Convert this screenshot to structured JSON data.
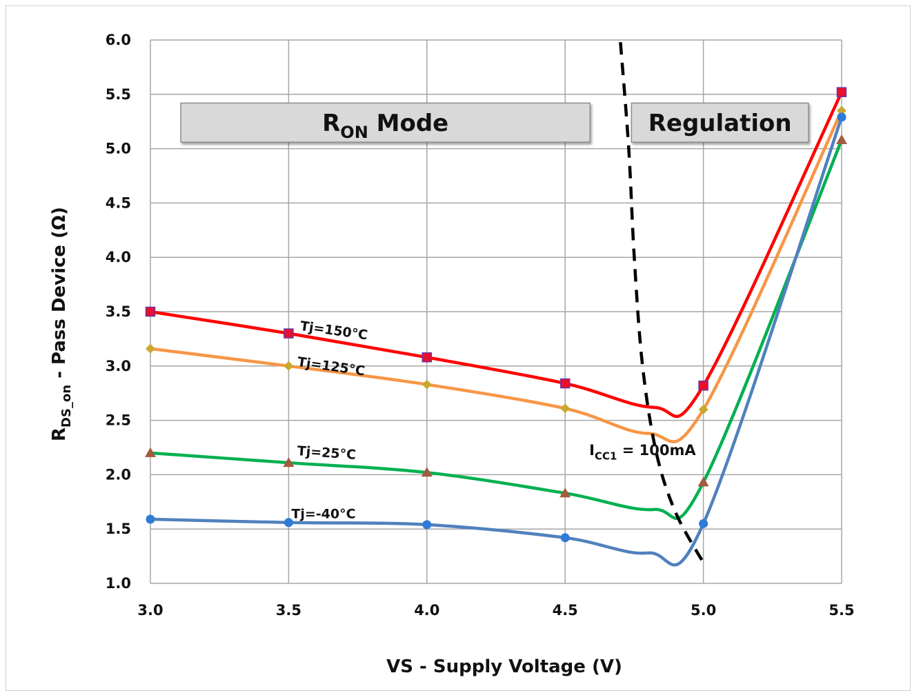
{
  "chart_data": {
    "type": "line",
    "title": "",
    "xlabel": "VS - Supply Voltage (V)",
    "ylabel": {
      "main": "R",
      "sub": "DS_on",
      "rest": " - Pass Device (Ω)"
    },
    "x_ticks": [
      "3.0",
      "3.5",
      "4.0",
      "4.5",
      "5.0",
      "5.5"
    ],
    "y_ticks": [
      "1.0",
      "1.5",
      "2.0",
      "2.5",
      "3.0",
      "3.5",
      "4.0",
      "4.5",
      "5.0",
      "5.5",
      "6.0"
    ],
    "xlim": [
      3.0,
      5.5
    ],
    "ylim": [
      1.0,
      6.0
    ],
    "grid": true,
    "x": [
      3.0,
      3.5,
      4.0,
      4.5,
      5.0,
      5.5
    ],
    "series": [
      {
        "name": "Tj=150°C",
        "color": "#ff0000",
        "marker": "square",
        "marker_color": "#e8102a",
        "values": [
          3.5,
          3.3,
          3.08,
          2.84,
          2.82,
          5.52
        ],
        "dip": [
          4.82,
          2.62
        ]
      },
      {
        "name": "Tj=125°C",
        "color": "#f79646",
        "marker": "diamond",
        "marker_color": "#c9a82e",
        "values": [
          3.16,
          3.0,
          2.83,
          2.61,
          2.6,
          5.35
        ],
        "dip": [
          4.8,
          2.38
        ]
      },
      {
        "name": "Tj=25°C",
        "color": "#00b050",
        "marker": "triangle",
        "marker_color": "#a35a3e",
        "values": [
          2.2,
          2.11,
          2.02,
          1.83,
          1.93,
          5.08
        ],
        "dip": [
          4.82,
          1.68
        ]
      },
      {
        "name": "Tj=-40°C",
        "color": "#4f81bd",
        "marker": "circle",
        "marker_color": "#2f7ad6",
        "values": [
          1.59,
          1.56,
          1.54,
          1.42,
          1.55,
          5.29
        ],
        "dip": [
          4.8,
          1.28
        ]
      }
    ],
    "boundary_line": {
      "style": "dashed",
      "color": "#000000",
      "points": [
        [
          4.7,
          5.98
        ],
        [
          4.73,
          5.0
        ],
        [
          4.75,
          4.0
        ],
        [
          4.78,
          3.0
        ],
        [
          4.83,
          2.2
        ],
        [
          4.9,
          1.65
        ],
        [
          5.0,
          1.19
        ]
      ]
    },
    "regions": [
      {
        "main": "R",
        "sub": "ON",
        "rest": " Mode",
        "x_range": [
          3.11,
          4.59
        ],
        "y_range": [
          5.06,
          5.42
        ]
      },
      {
        "main": "Regulation",
        "sub": "",
        "rest": "",
        "x_range": [
          4.74,
          5.38
        ],
        "y_range": [
          5.06,
          5.42
        ]
      }
    ],
    "annotation": {
      "main": "I",
      "sub": "CC1",
      "rest": " = 100mA",
      "x": 4.78,
      "y": 2.18
    },
    "series_labels": [
      {
        "text": "Tj=150°C",
        "x": 3.54,
        "y": 3.33,
        "angle": 8
      },
      {
        "text": "Tj=125°C",
        "x": 3.53,
        "y": 3.0,
        "angle": 8
      },
      {
        "text": "Tj=25°C",
        "x": 3.53,
        "y": 2.18,
        "angle": 4
      },
      {
        "text": "Tj=-40°C",
        "x": 3.51,
        "y": 1.6,
        "angle": 0
      }
    ]
  }
}
